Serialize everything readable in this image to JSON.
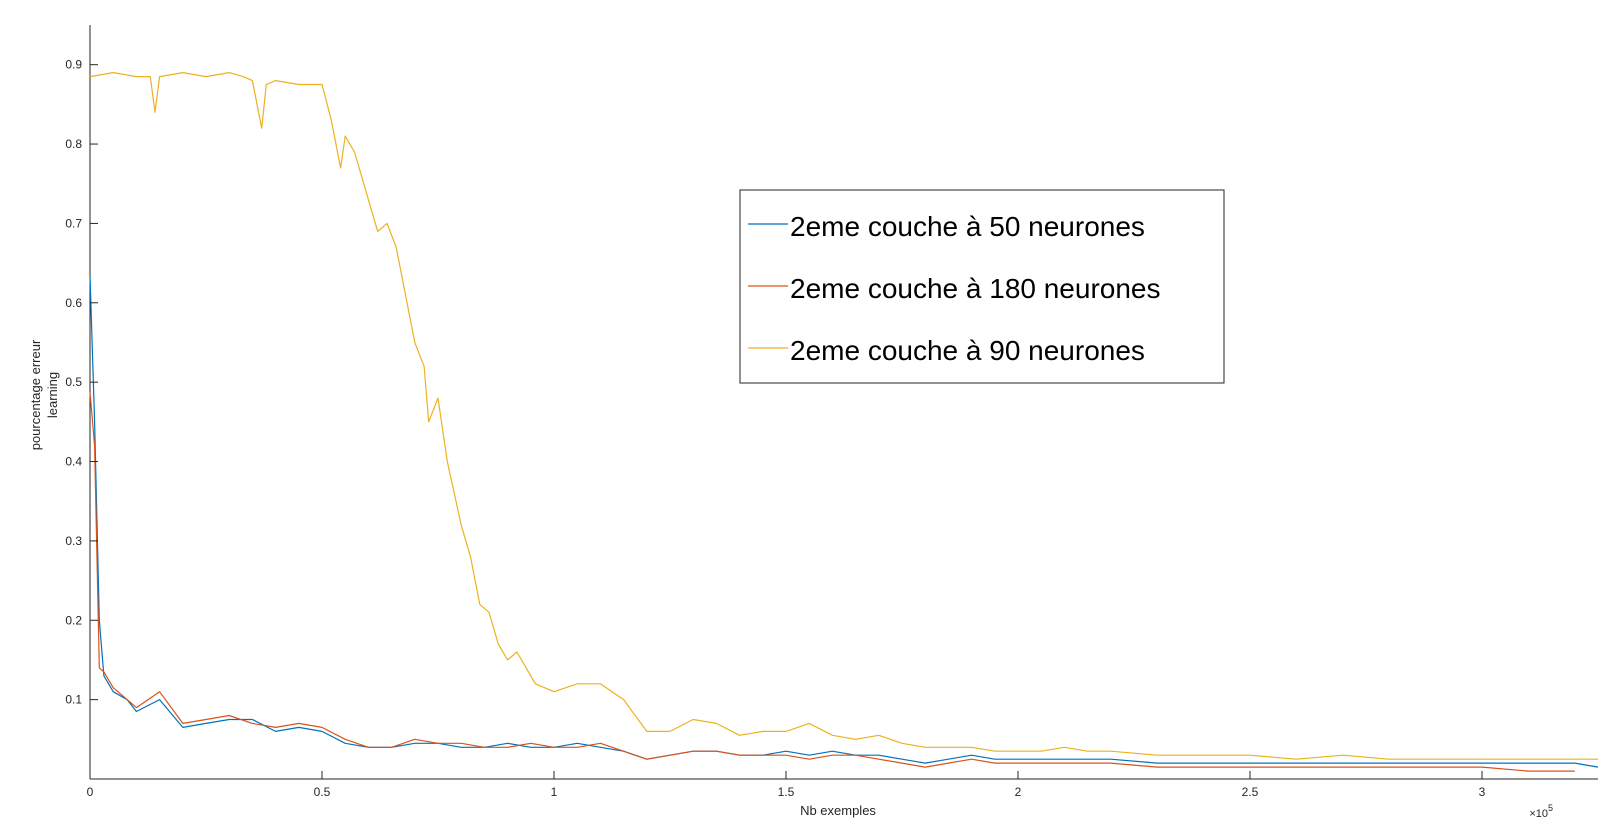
{
  "chart_data": {
    "type": "line",
    "title": "",
    "xlabel": "Nb exemples",
    "ylabel": [
      "pourcentage erreur",
      "learning"
    ],
    "x_multiplier_label": "×10",
    "x_multiplier_exp": "5",
    "xlim": [
      0,
      3.25
    ],
    "ylim": [
      0,
      0.95
    ],
    "x_ticks": [
      0,
      0.5,
      1,
      1.5,
      2,
      2.5,
      3
    ],
    "x_tick_labels": [
      "0",
      "0.5",
      "1",
      "1.5",
      "2",
      "2.5",
      "3"
    ],
    "y_ticks": [
      0.1,
      0.2,
      0.3,
      0.4,
      0.5,
      0.6,
      0.7,
      0.8,
      0.9
    ],
    "y_tick_labels": [
      "0.1",
      "0.2",
      "0.3",
      "0.4",
      "0.5",
      "0.6",
      "0.7",
      "0.8",
      "0.9"
    ],
    "grid": false,
    "legend_position": "top-right",
    "x": [
      0.0,
      0.1,
      0.2,
      0.3,
      0.4,
      0.5,
      0.6,
      0.7,
      0.8,
      0.9,
      1.0,
      1.1,
      1.2,
      1.3,
      1.4,
      1.5,
      1.6,
      1.7,
      1.8,
      1.9,
      2.0,
      2.1,
      2.2,
      2.3,
      2.4,
      2.5,
      2.6,
      2.7,
      2.8,
      2.9,
      3.0,
      3.1,
      3.2,
      3.25
    ],
    "series": [
      {
        "name": "2eme couche à 50 neurones",
        "color": "#0072BD",
        "points": [
          [
            0.0,
            0.635
          ],
          [
            0.01,
            0.45
          ],
          [
            0.02,
            0.2
          ],
          [
            0.03,
            0.13
          ],
          [
            0.05,
            0.11
          ],
          [
            0.08,
            0.1
          ],
          [
            0.1,
            0.085
          ],
          [
            0.15,
            0.1
          ],
          [
            0.2,
            0.065
          ],
          [
            0.25,
            0.07
          ],
          [
            0.3,
            0.075
          ],
          [
            0.35,
            0.075
          ],
          [
            0.4,
            0.06
          ],
          [
            0.45,
            0.065
          ],
          [
            0.5,
            0.06
          ],
          [
            0.55,
            0.045
          ],
          [
            0.6,
            0.04
          ],
          [
            0.65,
            0.04
          ],
          [
            0.7,
            0.045
          ],
          [
            0.75,
            0.045
          ],
          [
            0.8,
            0.04
          ],
          [
            0.85,
            0.04
          ],
          [
            0.9,
            0.045
          ],
          [
            0.95,
            0.04
          ],
          [
            1.0,
            0.04
          ],
          [
            1.05,
            0.045
          ],
          [
            1.1,
            0.04
          ],
          [
            1.15,
            0.035
          ],
          [
            1.2,
            0.025
          ],
          [
            1.25,
            0.03
          ],
          [
            1.3,
            0.035
          ],
          [
            1.35,
            0.035
          ],
          [
            1.4,
            0.03
          ],
          [
            1.45,
            0.03
          ],
          [
            1.5,
            0.035
          ],
          [
            1.55,
            0.03
          ],
          [
            1.6,
            0.035
          ],
          [
            1.65,
            0.03
          ],
          [
            1.7,
            0.03
          ],
          [
            1.75,
            0.025
          ],
          [
            1.8,
            0.02
          ],
          [
            1.85,
            0.025
          ],
          [
            1.9,
            0.03
          ],
          [
            1.95,
            0.025
          ],
          [
            2.0,
            0.025
          ],
          [
            2.1,
            0.025
          ],
          [
            2.2,
            0.025
          ],
          [
            2.3,
            0.02
          ],
          [
            2.4,
            0.02
          ],
          [
            2.5,
            0.02
          ],
          [
            2.6,
            0.02
          ],
          [
            2.7,
            0.02
          ],
          [
            2.8,
            0.02
          ],
          [
            2.9,
            0.02
          ],
          [
            3.0,
            0.02
          ],
          [
            3.1,
            0.02
          ],
          [
            3.2,
            0.02
          ],
          [
            3.25,
            0.015
          ]
        ]
      },
      {
        "name": "2eme couche à 180 neurones",
        "color": "#D95319",
        "points": [
          [
            0.0,
            0.487
          ],
          [
            0.01,
            0.42
          ],
          [
            0.02,
            0.14
          ],
          [
            0.03,
            0.135
          ],
          [
            0.05,
            0.115
          ],
          [
            0.08,
            0.1
          ],
          [
            0.1,
            0.09
          ],
          [
            0.15,
            0.11
          ],
          [
            0.2,
            0.07
          ],
          [
            0.25,
            0.075
          ],
          [
            0.3,
            0.08
          ],
          [
            0.35,
            0.07
          ],
          [
            0.4,
            0.065
          ],
          [
            0.45,
            0.07
          ],
          [
            0.5,
            0.065
          ],
          [
            0.55,
            0.05
          ],
          [
            0.6,
            0.04
          ],
          [
            0.65,
            0.04
          ],
          [
            0.7,
            0.05
          ],
          [
            0.75,
            0.045
          ],
          [
            0.8,
            0.045
          ],
          [
            0.85,
            0.04
          ],
          [
            0.9,
            0.04
          ],
          [
            0.95,
            0.045
          ],
          [
            1.0,
            0.04
          ],
          [
            1.05,
            0.04
          ],
          [
            1.1,
            0.045
          ],
          [
            1.15,
            0.035
          ],
          [
            1.2,
            0.025
          ],
          [
            1.25,
            0.03
          ],
          [
            1.3,
            0.035
          ],
          [
            1.35,
            0.035
          ],
          [
            1.4,
            0.03
          ],
          [
            1.45,
            0.03
          ],
          [
            1.5,
            0.03
          ],
          [
            1.55,
            0.025
          ],
          [
            1.6,
            0.03
          ],
          [
            1.65,
            0.03
          ],
          [
            1.7,
            0.025
          ],
          [
            1.75,
            0.02
          ],
          [
            1.8,
            0.015
          ],
          [
            1.85,
            0.02
          ],
          [
            1.9,
            0.025
          ],
          [
            1.95,
            0.02
          ],
          [
            2.0,
            0.02
          ],
          [
            2.1,
            0.02
          ],
          [
            2.2,
            0.02
          ],
          [
            2.3,
            0.015
          ],
          [
            2.4,
            0.015
          ],
          [
            2.5,
            0.015
          ],
          [
            2.6,
            0.015
          ],
          [
            2.7,
            0.015
          ],
          [
            2.8,
            0.015
          ],
          [
            2.9,
            0.015
          ],
          [
            3.0,
            0.015
          ],
          [
            3.1,
            0.01
          ],
          [
            3.15,
            0.01
          ],
          [
            3.2,
            0.01
          ]
        ]
      },
      {
        "name": "2eme couche à 90 neurones",
        "color": "#EDB120",
        "points": [
          [
            0.0,
            0.885
          ],
          [
            0.05,
            0.89
          ],
          [
            0.1,
            0.885
          ],
          [
            0.13,
            0.885
          ],
          [
            0.14,
            0.84
          ],
          [
            0.15,
            0.885
          ],
          [
            0.2,
            0.89
          ],
          [
            0.25,
            0.885
          ],
          [
            0.3,
            0.89
          ],
          [
            0.33,
            0.885
          ],
          [
            0.35,
            0.88
          ],
          [
            0.37,
            0.82
          ],
          [
            0.38,
            0.875
          ],
          [
            0.4,
            0.88
          ],
          [
            0.45,
            0.875
          ],
          [
            0.5,
            0.875
          ],
          [
            0.52,
            0.83
          ],
          [
            0.54,
            0.77
          ],
          [
            0.55,
            0.81
          ],
          [
            0.57,
            0.79
          ],
          [
            0.6,
            0.73
          ],
          [
            0.62,
            0.69
          ],
          [
            0.64,
            0.7
          ],
          [
            0.66,
            0.67
          ],
          [
            0.68,
            0.61
          ],
          [
            0.7,
            0.55
          ],
          [
            0.72,
            0.52
          ],
          [
            0.73,
            0.45
          ],
          [
            0.75,
            0.48
          ],
          [
            0.77,
            0.4
          ],
          [
            0.8,
            0.32
          ],
          [
            0.82,
            0.28
          ],
          [
            0.84,
            0.22
          ],
          [
            0.86,
            0.21
          ],
          [
            0.88,
            0.17
          ],
          [
            0.9,
            0.15
          ],
          [
            0.92,
            0.16
          ],
          [
            0.94,
            0.14
          ],
          [
            0.96,
            0.12
          ],
          [
            1.0,
            0.11
          ],
          [
            1.05,
            0.12
          ],
          [
            1.1,
            0.12
          ],
          [
            1.15,
            0.1
          ],
          [
            1.2,
            0.06
          ],
          [
            1.25,
            0.06
          ],
          [
            1.3,
            0.075
          ],
          [
            1.35,
            0.07
          ],
          [
            1.4,
            0.055
          ],
          [
            1.45,
            0.06
          ],
          [
            1.5,
            0.06
          ],
          [
            1.55,
            0.07
          ],
          [
            1.6,
            0.055
          ],
          [
            1.65,
            0.05
          ],
          [
            1.7,
            0.055
          ],
          [
            1.75,
            0.045
          ],
          [
            1.8,
            0.04
          ],
          [
            1.85,
            0.04
          ],
          [
            1.9,
            0.04
          ],
          [
            1.95,
            0.035
          ],
          [
            2.0,
            0.035
          ],
          [
            2.05,
            0.035
          ],
          [
            2.1,
            0.04
          ],
          [
            2.15,
            0.035
          ],
          [
            2.2,
            0.035
          ],
          [
            2.3,
            0.03
          ],
          [
            2.4,
            0.03
          ],
          [
            2.5,
            0.03
          ],
          [
            2.6,
            0.025
          ],
          [
            2.7,
            0.03
          ],
          [
            2.8,
            0.025
          ],
          [
            2.9,
            0.025
          ],
          [
            3.0,
            0.025
          ],
          [
            3.1,
            0.025
          ],
          [
            3.2,
            0.025
          ],
          [
            3.25,
            0.025
          ]
        ]
      }
    ]
  }
}
